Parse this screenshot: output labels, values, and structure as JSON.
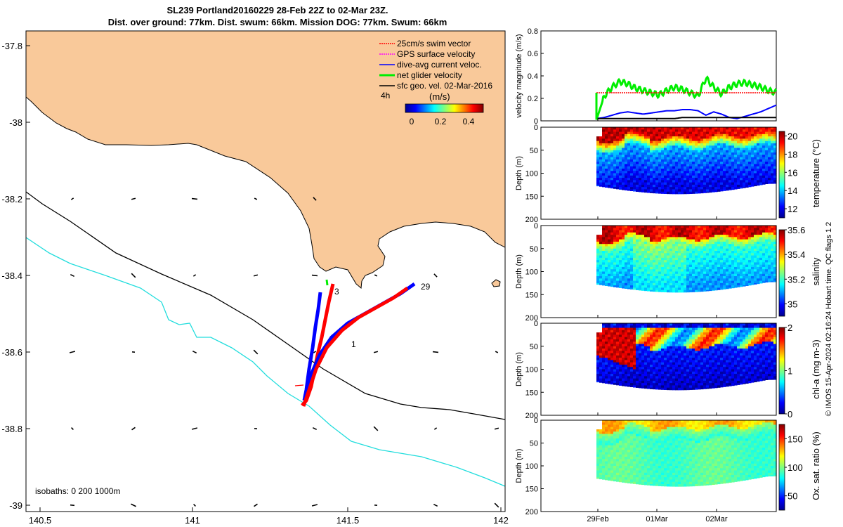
{
  "title": {
    "line1": "SL239 Portland20160229 28-Feb 22Z to 02-Mar 23Z.",
    "line2": "Dist. over ground: 77km. Dist. swum: 66km. Mission DOG: 77km. Swum: 66km"
  },
  "map": {
    "x_ticks": [
      "140.5",
      "141",
      "141.5",
      "142"
    ],
    "y_ticks": [
      "-37.8",
      "-38",
      "-38.2",
      "-38.4",
      "-38.6",
      "-38.8",
      "-39"
    ],
    "legend": [
      {
        "label": "25cm/s swim vector",
        "color": "#ff0000"
      },
      {
        "label": "GPS surface velocity",
        "color": "#ff00ff"
      },
      {
        "label": "dive-avg current veloc.",
        "color": "#0000ff"
      },
      {
        "label": "net glider velocity",
        "color": "#00ee00"
      },
      {
        "label": "sfc geo. vel. 02-Mar-2016",
        "color": "#000000"
      }
    ],
    "legend_time": "4h",
    "colorbar_label": "(m/s)",
    "colorbar_ticks": [
      "0",
      "0.2",
      "0.4"
    ],
    "isobath_label": "isobaths: 0   200  1000m",
    "track_labels": [
      "3",
      "29",
      "1"
    ],
    "colors": {
      "land": "#f9c99a",
      "isobath_200": "#000000",
      "isobath_1000": "#22dddd",
      "track_out": "#ff0000",
      "track_in": "#0000ff"
    }
  },
  "chart_data": [
    {
      "type": "line",
      "ylabel": "velocity magnitude (m/s)",
      "ylim": [
        0,
        0.8
      ],
      "y_ticks": [
        "0",
        "0.2",
        "0.4",
        "0.6",
        "0.8"
      ],
      "x_ticks": [
        "29Feb",
        "01Mar",
        "02Mar"
      ],
      "series": [
        {
          "color": "#00ee00",
          "values": [
            0.01,
            0.22,
            0.3,
            0.35,
            0.33,
            0.29,
            0.27,
            0.25,
            0.23,
            0.27,
            0.3,
            0.28,
            0.25,
            0.22,
            0.38,
            0.3,
            0.24,
            0.3,
            0.33,
            0.34,
            0.32,
            0.3,
            0.27,
            0.25
          ]
        },
        {
          "color": "#ff0000",
          "values": [
            0.25,
            0.25,
            0.25,
            0.25,
            0.25,
            0.25,
            0.25,
            0.25,
            0.25,
            0.25,
            0.25,
            0.25,
            0.25,
            0.25,
            0.25,
            0.25,
            0.25,
            0.25,
            0.25,
            0.25,
            0.25,
            0.25,
            0.25,
            0.25
          ]
        },
        {
          "color": "#0000ff",
          "values": [
            0.02,
            0.03,
            0.05,
            0.07,
            0.08,
            0.07,
            0.06,
            0.07,
            0.08,
            0.09,
            0.09,
            0.1,
            0.1,
            0.09,
            0.05,
            0.08,
            0.06,
            0.03,
            0.02,
            0.04,
            0.06,
            0.08,
            0.11,
            0.14
          ]
        },
        {
          "color": "#000000",
          "values": [
            0.02,
            0.02,
            0.02,
            0.02,
            0.02,
            0.02,
            0.02,
            0.02,
            0.02,
            0.02,
            0.02,
            0.03,
            0.03,
            0.03,
            0.03,
            0.03,
            0.03,
            0.03,
            0.03,
            0.03,
            0.03,
            0.03,
            0.03,
            0.03
          ]
        }
      ]
    },
    {
      "type": "heatmap",
      "variable": "temperature",
      "ylabel": "Depth (m)",
      "y_ticks": [
        "0",
        "50",
        "100",
        "150",
        "200"
      ],
      "colorbar_label": "temperature (°C)",
      "colorbar_ticks": [
        "12",
        "14",
        "16",
        "18",
        "20"
      ],
      "range": [
        11,
        20.5
      ]
    },
    {
      "type": "heatmap",
      "variable": "salinity",
      "ylabel": "Depth (m)",
      "y_ticks": [
        "0",
        "50",
        "100",
        "150",
        "200"
      ],
      "colorbar_label": "salinity",
      "colorbar_ticks": [
        "35",
        "35.2",
        "35.4",
        "35.6"
      ],
      "range": [
        34.9,
        35.6
      ]
    },
    {
      "type": "heatmap",
      "variable": "chl-a",
      "ylabel": "Depth (m)",
      "y_ticks": [
        "0",
        "50",
        "100",
        "150",
        "200"
      ],
      "colorbar_label": "chl-a (mg m-3)",
      "colorbar_ticks": [
        "0",
        "1",
        "2"
      ],
      "range": [
        0,
        2
      ]
    },
    {
      "type": "heatmap",
      "variable": "oxygen",
      "ylabel": "Depth (m)",
      "y_ticks": [
        "0",
        "50",
        "100",
        "150",
        "200"
      ],
      "colorbar_label": "Ox. sat. ratio (%)",
      "colorbar_ticks": [
        "50",
        "100",
        "150"
      ],
      "range": [
        25,
        175
      ],
      "x_ticks": [
        "29Feb",
        "01Mar",
        "02Mar"
      ]
    }
  ],
  "side_note": {
    "copyright": "© IMOS 15-Apr-2024 02:16:24 Hobart time. QC flags 1  2"
  }
}
